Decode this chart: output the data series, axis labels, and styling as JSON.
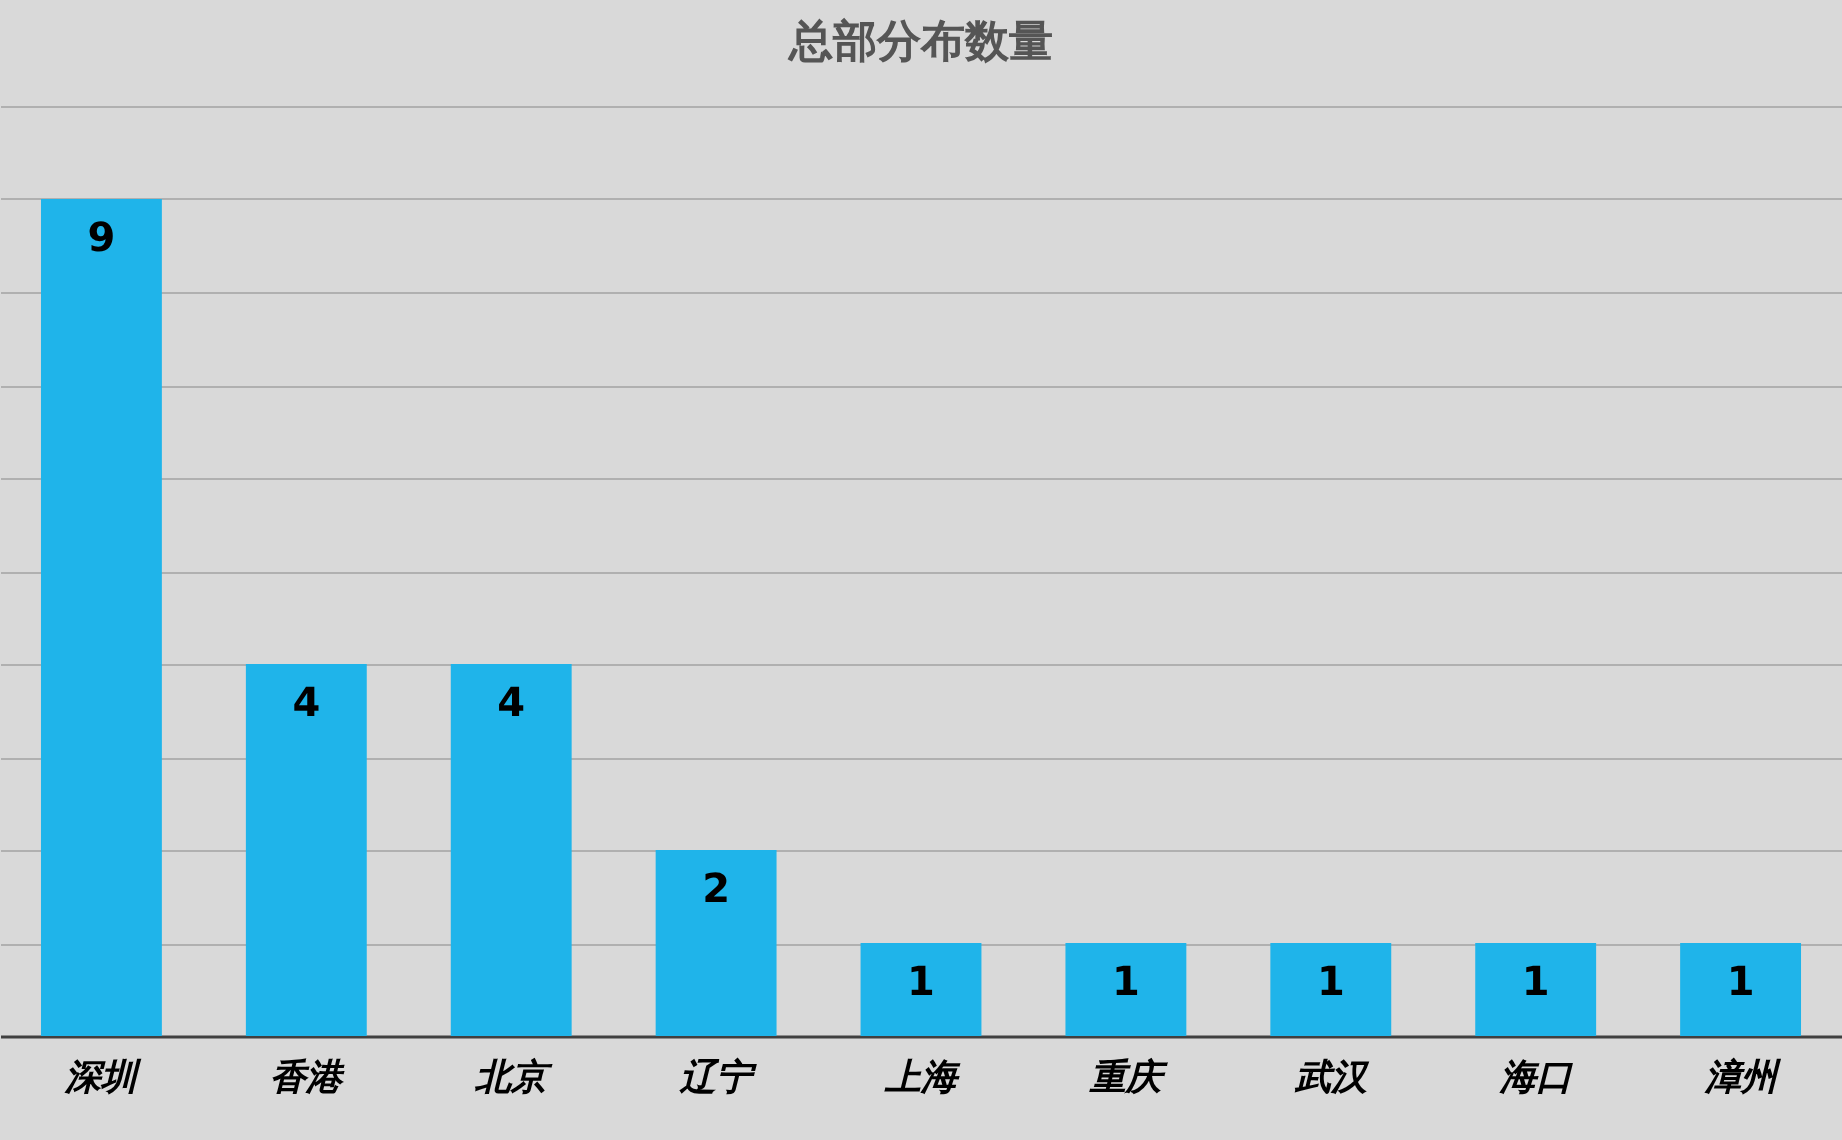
{
  "chart_data": {
    "type": "bar",
    "title": "总部分布数量",
    "categories": [
      "深圳",
      "香港",
      "北京",
      "辽宁",
      "上海",
      "重庆",
      "武汉",
      "海口",
      "漳州"
    ],
    "values": [
      9,
      4,
      4,
      2,
      1,
      1,
      1,
      1,
      1
    ],
    "color": "#1fb4ea",
    "ylim": [
      0,
      10
    ],
    "yticks": [
      0,
      1,
      2,
      3,
      4,
      5,
      6,
      7,
      8,
      9,
      10
    ],
    "grid": "y",
    "tick_labels": "x",
    "data_labels": true
  }
}
